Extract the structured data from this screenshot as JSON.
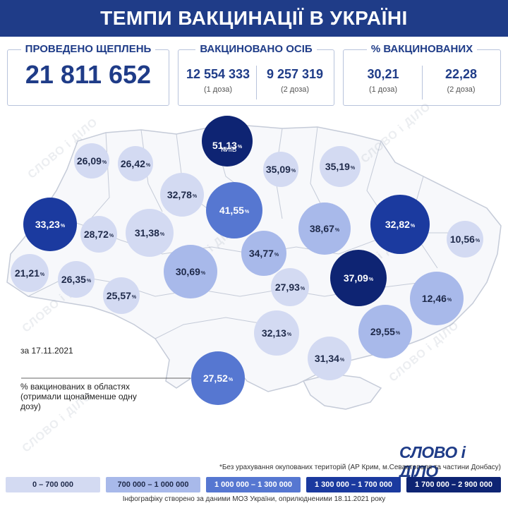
{
  "header": {
    "title": "ТЕМПИ ВАКЦИНАЦІЇ В УКРАЇНІ"
  },
  "stats": {
    "doses": {
      "label": "ПРОВЕДЕНО ЩЕПЛЕНЬ",
      "value": "21 811 652"
    },
    "persons": {
      "label": "ВАКЦИНОВАНО ОСІБ",
      "dose1": {
        "value": "12 554 333",
        "note": "(1 доза)"
      },
      "dose2": {
        "value": "9 257 319",
        "note": "(2 доза)"
      }
    },
    "percent": {
      "label": "% ВАКЦИНОВАНИХ",
      "dose1": {
        "value": "30,21",
        "note": "(1 доза)"
      },
      "dose2": {
        "value": "22,28",
        "note": "(2 доза)"
      }
    }
  },
  "map": {
    "kyiv_label": "КИЇВ",
    "regions": [
      {
        "value": "26,09",
        "level": 0
      },
      {
        "value": "26,42",
        "level": 0
      },
      {
        "value": "51,13",
        "level": 4
      },
      {
        "value": "35,09",
        "level": 0
      },
      {
        "value": "35,19",
        "level": 0
      },
      {
        "value": "32,78",
        "level": 0
      },
      {
        "value": "41,55",
        "level": 2
      },
      {
        "value": "33,23",
        "level": 3
      },
      {
        "value": "28,72",
        "level": 0
      },
      {
        "value": "31,38",
        "level": 0
      },
      {
        "value": "38,67",
        "level": 1
      },
      {
        "value": "32,82",
        "level": 3
      },
      {
        "value": "10,56",
        "level": 0
      },
      {
        "value": "34,77",
        "level": 1
      },
      {
        "value": "21,21",
        "level": 0
      },
      {
        "value": "26,35",
        "level": 0
      },
      {
        "value": "30,69",
        "level": 1
      },
      {
        "value": "27,93",
        "level": 0
      },
      {
        "value": "37,09",
        "level": 4
      },
      {
        "value": "12,46",
        "level": 1
      },
      {
        "value": "25,57",
        "level": 0
      },
      {
        "value": "32,13",
        "level": 0
      },
      {
        "value": "29,55",
        "level": 1
      },
      {
        "value": "31,34",
        "level": 0
      },
      {
        "value": "27,52",
        "level": 2
      }
    ],
    "pct_sign": "%"
  },
  "notes": {
    "date": "за 17.11.2021",
    "legend_desc": "% вакцинованих в областях (отримали щонайменше одну дозу)",
    "footnote": "*Без урахування окупованих територій (АР Крим, м.Севастополя та частини Донбасу)",
    "source": "Інфографіку створено за даними МОЗ України, оприлюдненими 18.11.2021 року"
  },
  "brand": {
    "name": "СЛОВО і ДІЛО",
    "watermark": "СЛОВО і ДІЛО"
  },
  "legend": [
    {
      "label": "0 – 700 000",
      "color": "#d3daf2",
      "text_color": "#1f2a4a"
    },
    {
      "label": "700 000 – 1 000 000",
      "color": "#a8b9ea",
      "text_color": "#1f2a4a"
    },
    {
      "label": "1 000 000 – 1 300 000",
      "color": "#5677d1",
      "text_color": "#ffffff"
    },
    {
      "label": "1 300 000 – 1 700 000",
      "color": "#1b3a9f",
      "text_color": "#ffffff"
    },
    {
      "label": "1 700 000 – 2 900 000",
      "color": "#0e2473",
      "text_color": "#ffffff"
    }
  ],
  "colors": {
    "header": "#1f3c88",
    "text_blue": "#1f3c88"
  }
}
